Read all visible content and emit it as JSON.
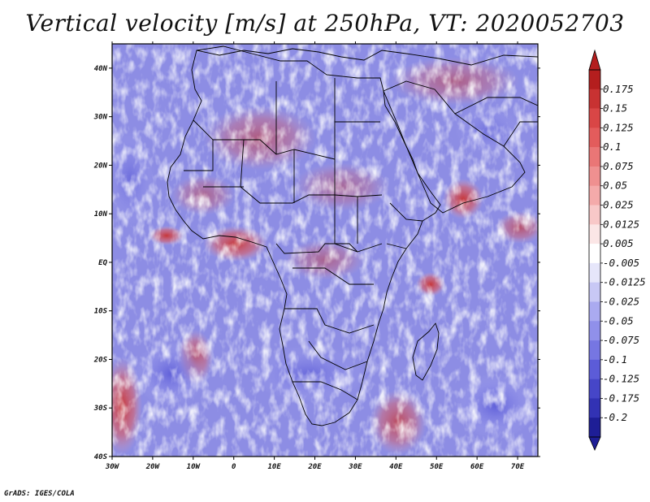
{
  "title": "Vertical velocity [m/s] at 250hPa, VT: 2020052703",
  "credit": "GrADS: IGES/COLA",
  "map": {
    "lon_range": [
      -30,
      75
    ],
    "lat_range": [
      -40,
      45
    ],
    "lon_ticks": [
      {
        "value": -30,
        "label": "30W"
      },
      {
        "value": -20,
        "label": "20W"
      },
      {
        "value": -10,
        "label": "10W"
      },
      {
        "value": 0,
        "label": "0"
      },
      {
        "value": 10,
        "label": "10E"
      },
      {
        "value": 20,
        "label": "20E"
      },
      {
        "value": 30,
        "label": "30E"
      },
      {
        "value": 40,
        "label": "40E"
      },
      {
        "value": 50,
        "label": "50E"
      },
      {
        "value": 60,
        "label": "60E"
      },
      {
        "value": 70,
        "label": "70E"
      }
    ],
    "lat_ticks": [
      {
        "value": 40,
        "label": "40N"
      },
      {
        "value": 30,
        "label": "30N"
      },
      {
        "value": 20,
        "label": "20N"
      },
      {
        "value": 10,
        "label": "10N"
      },
      {
        "value": 0,
        "label": "EQ"
      },
      {
        "value": -10,
        "label": "10S"
      },
      {
        "value": -20,
        "label": "20S"
      },
      {
        "value": -30,
        "label": "30S"
      },
      {
        "value": -40,
        "label": "40S"
      }
    ]
  },
  "colorbar": {
    "labels": [
      "0.175",
      "0.15",
      "0.125",
      "0.1",
      "0.075",
      "0.05",
      "0.025",
      "0.0125",
      "0.005",
      "-0.005",
      "-0.0125",
      "-0.025",
      "-0.05",
      "-0.075",
      "-0.1",
      "-0.125",
      "-0.175",
      "-0.2"
    ],
    "colors": [
      "#b41e1e",
      "#c83232",
      "#d94646",
      "#e35c5c",
      "#ea7676",
      "#ef9090",
      "#f4aaaa",
      "#f8c8c8",
      "#fbe6e6",
      "#ffffff",
      "#e6e6fa",
      "#c8c8f5",
      "#aaaaf0",
      "#9090ea",
      "#7676e2",
      "#5c5cd8",
      "#4646c8",
      "#3232b4",
      "#1e1e96"
    ]
  }
}
